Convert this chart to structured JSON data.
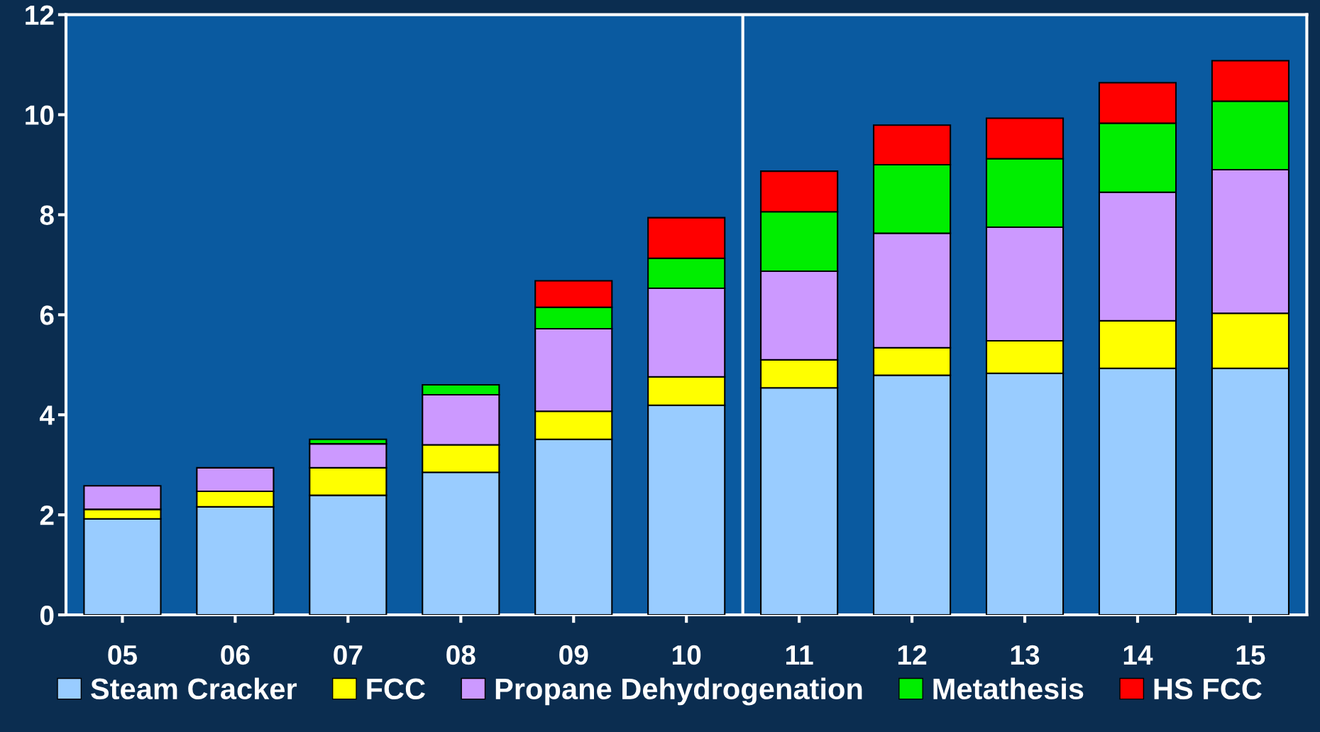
{
  "chart_data": {
    "type": "bar",
    "stacked": true,
    "categories": [
      "05",
      "06",
      "07",
      "08",
      "09",
      "10",
      "11",
      "12",
      "13",
      "14",
      "15"
    ],
    "series": [
      {
        "name": "Steam Cracker",
        "color": "#99ccff",
        "values": [
          1.92,
          2.16,
          2.39,
          2.85,
          3.51,
          4.19,
          4.54,
          4.79,
          4.83,
          4.93,
          4.93
        ]
      },
      {
        "name": "FCC",
        "color": "#ffff00",
        "values": [
          0.19,
          0.31,
          0.55,
          0.55,
          0.56,
          0.57,
          0.56,
          0.55,
          0.65,
          0.95,
          1.1
        ]
      },
      {
        "name": "Propane Dehydrogenation",
        "color": "#cc99ff",
        "values": [
          0.47,
          0.47,
          0.48,
          1.0,
          1.65,
          1.77,
          1.77,
          2.29,
          2.27,
          2.57,
          2.87
        ]
      },
      {
        "name": "Metathesis",
        "color": "#00ee00",
        "values": [
          null,
          null,
          0.09,
          0.2,
          0.43,
          0.6,
          1.19,
          1.37,
          1.37,
          1.38,
          1.37
        ]
      },
      {
        "name": "HS FCC",
        "color": "#ff0000",
        "values": [
          null,
          null,
          null,
          null,
          0.53,
          0.81,
          0.81,
          0.79,
          0.81,
          0.81,
          0.81
        ]
      }
    ],
    "ylim": [
      0,
      12
    ],
    "yticks": [
      0,
      2,
      4,
      6,
      8,
      10,
      12
    ],
    "grid": false,
    "legend": "bottom"
  }
}
